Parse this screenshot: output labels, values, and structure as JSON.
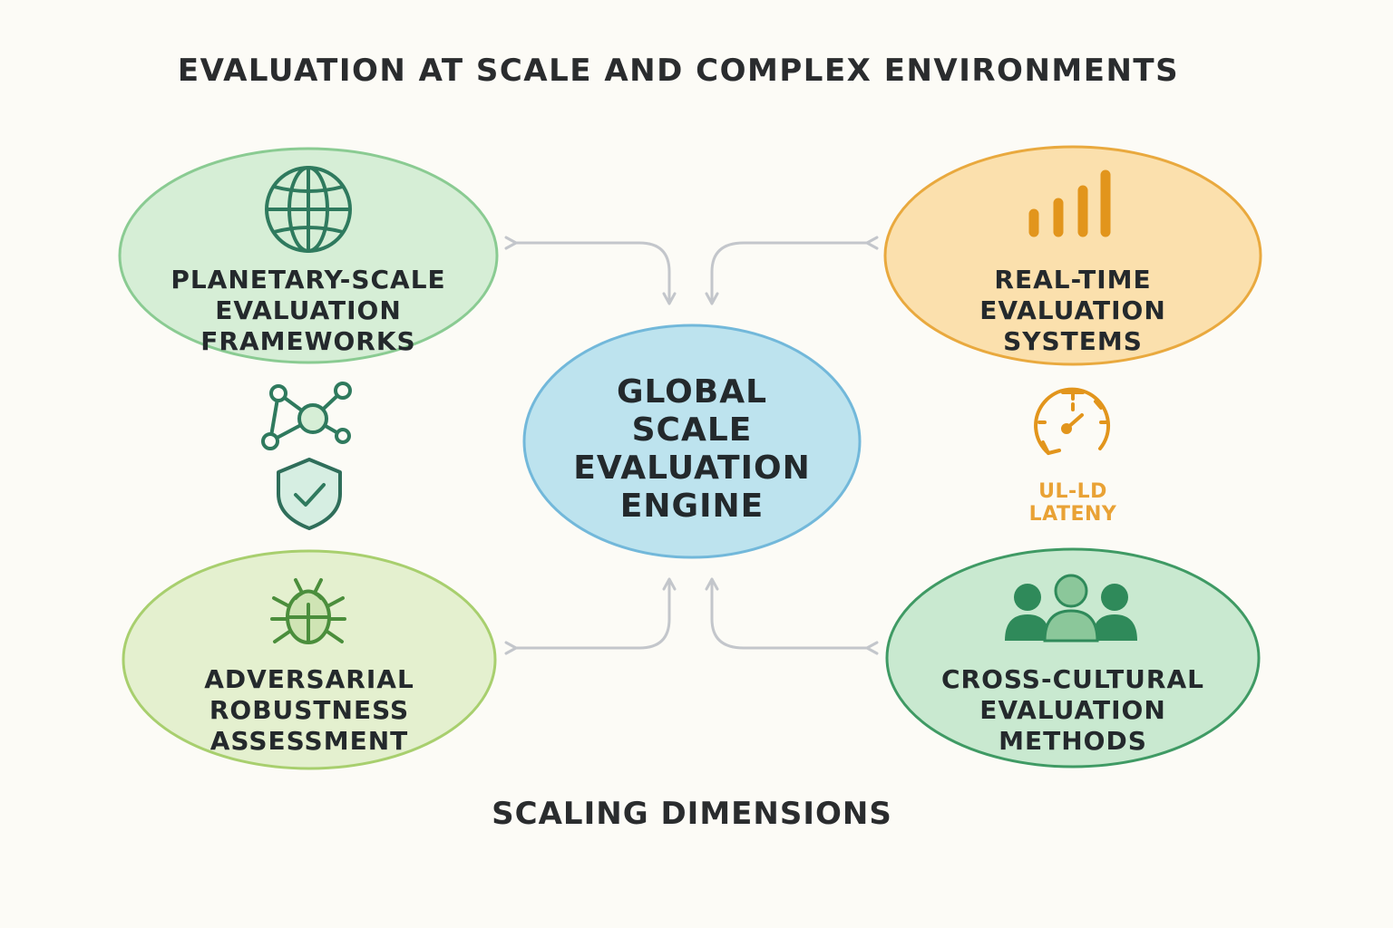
{
  "title": "EVALUATION AT SCALE AND COMPLEX ENVIRONMENTS",
  "footer": "SCALING DIMENSIONS",
  "center": {
    "label": "GLOBAL\nSCALE\nEVALUATION\nENGINE",
    "fill": "#bde3ee",
    "stroke": "#72b8da"
  },
  "nodes": {
    "planetary": {
      "label": "PLANETARY-SCALE\nEVALUATION\nFRAMEWORKS",
      "icon": "globe-icon",
      "fill": "#d6eed6",
      "stroke": "#8acb92"
    },
    "realtime": {
      "label": "REAL-TIME\nEVALUATION\nSYSTEMS",
      "icon": "signal-bars-icon",
      "fill": "#fbe0ad",
      "stroke": "#e9a93e"
    },
    "adversarial": {
      "label": "ADVERSARIAL\nROBUSTNESS\nASSESSMENT",
      "icon": "bug-icon",
      "fill": "#e4f0cf",
      "stroke": "#a8cf6e"
    },
    "crosscultural": {
      "label": "CROSS-CULTURAL\nEVALUATION\nMETHODS",
      "icon": "people-group-icon",
      "fill": "#c9e9d0",
      "stroke": "#3f9a64"
    }
  },
  "side_icons": {
    "left": [
      "network-icon",
      "shield-check-icon"
    ],
    "right": [
      "stopwatch-icon"
    ]
  },
  "latency_label": "UL-LD\nLATENY",
  "colors": {
    "arrow": "#c3c6cb",
    "green_icon": "#2f7a5e",
    "orange_icon": "#e2951c"
  }
}
